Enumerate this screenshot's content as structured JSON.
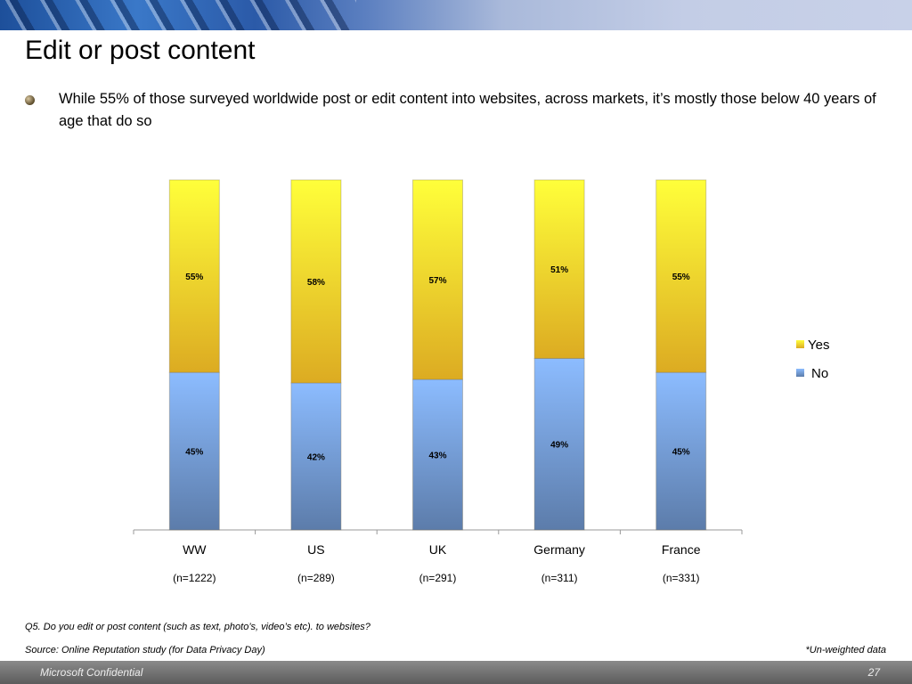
{
  "slide": {
    "title": "Edit or post content",
    "bullet": "While 55% of those surveyed worldwide post or edit content into websites, across markets, it’s mostly those below 40 years of age that do so",
    "question": "Q5. Do you edit or post content (such as text, photo’s, video’s etc). to websites?",
    "source": "Source: Online Reputation study (for Data Privacy Day)",
    "note": "*Un-weighted data",
    "footer_left": "Microsoft Confidential",
    "page_number": "27"
  },
  "chart_data": {
    "type": "bar",
    "stacked": true,
    "categories": [
      "WW",
      "US",
      "UK",
      "Germany",
      "France"
    ],
    "sample_sizes": [
      "(n=1222)",
      "(n=289)",
      "(n=291)",
      "(n=311)",
      "(n=331)"
    ],
    "series": [
      {
        "name": "No",
        "values": [
          45,
          42,
          43,
          49,
          45
        ],
        "labels": [
          "45%",
          "42%",
          "43%",
          "49%",
          "45%"
        ],
        "color": "#7ea6dc"
      },
      {
        "name": "Yes",
        "values": [
          55,
          58,
          57,
          51,
          55
        ],
        "labels": [
          "55%",
          "58%",
          "57%",
          "51%",
          "55%"
        ],
        "color": "#f2d22e"
      }
    ],
    "ylim": [
      0,
      100
    ],
    "legend": "right",
    "legend_order": [
      "Yes",
      "No"
    ],
    "grid": false
  }
}
